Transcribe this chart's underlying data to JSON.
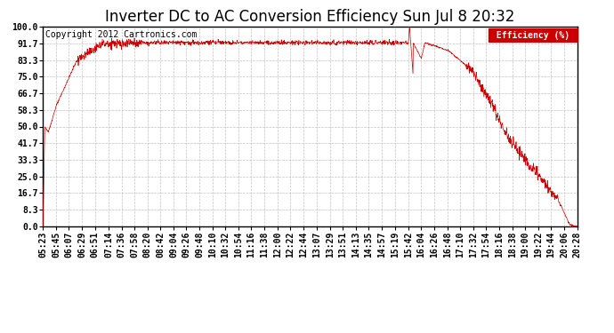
{
  "title": "Inverter DC to AC Conversion Efficiency Sun Jul 8 20:32",
  "copyright": "Copyright 2012 Cartronics.com",
  "legend_label": "Efficiency (%)",
  "legend_bg": "#cc0000",
  "legend_fg": "#ffffff",
  "line_color": "#cc0000",
  "bg_color": "#ffffff",
  "plot_bg_color": "#ffffff",
  "grid_color": "#bbbbbb",
  "yticks": [
    0.0,
    8.3,
    16.7,
    25.0,
    33.3,
    41.7,
    50.0,
    58.3,
    66.7,
    75.0,
    83.3,
    91.7,
    100.0
  ],
  "ylim": [
    0,
    100
  ],
  "title_fontsize": 12,
  "tick_fontsize": 7,
  "copyright_fontsize": 7,
  "x_tick_labels": [
    "05:23",
    "05:45",
    "06:07",
    "06:29",
    "06:51",
    "07:14",
    "07:36",
    "07:58",
    "08:20",
    "08:42",
    "09:04",
    "09:26",
    "09:48",
    "10:10",
    "10:32",
    "10:54",
    "11:16",
    "11:38",
    "12:00",
    "12:22",
    "12:44",
    "13:07",
    "13:29",
    "13:51",
    "14:13",
    "14:35",
    "14:57",
    "15:19",
    "15:42",
    "16:04",
    "16:26",
    "16:48",
    "17:10",
    "17:32",
    "17:54",
    "18:16",
    "18:38",
    "19:00",
    "19:22",
    "19:44",
    "20:06",
    "20:28"
  ]
}
